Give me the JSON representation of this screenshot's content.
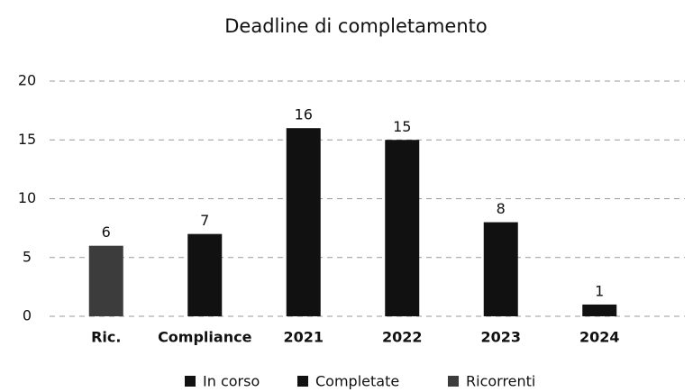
{
  "chart_data": {
    "type": "bar",
    "title": "Deadline di completamento",
    "categories": [
      "Ric.",
      "Compliance",
      "2021",
      "2022",
      "2023",
      "2024"
    ],
    "series": [
      {
        "name": "In corso",
        "color": "#111111",
        "values": [
          null,
          null,
          null,
          null,
          null,
          1
        ]
      },
      {
        "name": "Completate",
        "color": "#111111",
        "values": [
          null,
          7,
          16,
          15,
          8,
          null
        ]
      },
      {
        "name": "Ricorrenti",
        "color": "#3c3c3c",
        "values": [
          6,
          null,
          null,
          null,
          null,
          null
        ]
      }
    ],
    "ylim": [
      0,
      20
    ],
    "yticks": [
      0,
      5,
      10,
      15,
      20
    ],
    "grid": true,
    "legend": "bottom"
  }
}
